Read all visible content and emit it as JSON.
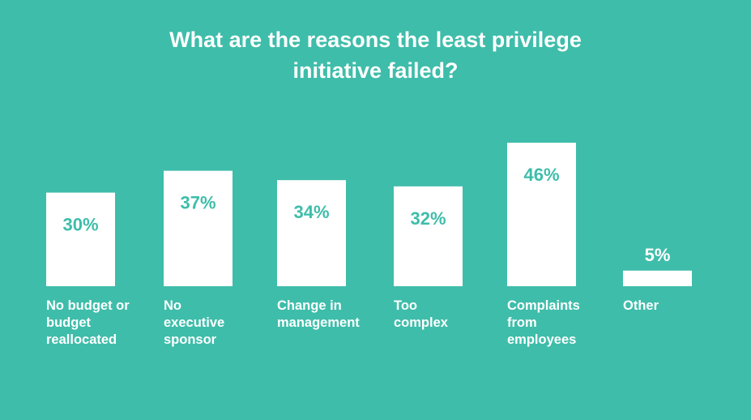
{
  "title_lines": [
    "What are the reasons the least privilege",
    "initiative failed?"
  ],
  "colors": {
    "background": "#3ebdaa",
    "bar": "#ffffff",
    "value_text": "#3ebdaa",
    "label_text": "#ffffff"
  },
  "chart_data": {
    "type": "bar",
    "title": "What are the reasons the least privilege initiative failed?",
    "categories": [
      "No budget or budget reallocated",
      "No executive sponsor",
      "Change in management",
      "Too complex",
      "Complaints from employees",
      "Other"
    ],
    "category_label_lines": [
      [
        "No budget or",
        "budget",
        "reallocated"
      ],
      [
        "No",
        "executive",
        "sponsor"
      ],
      [
        "Change in",
        "management"
      ],
      [
        "Too",
        "complex"
      ],
      [
        "Complaints",
        "from",
        "employees"
      ],
      [
        "Other"
      ]
    ],
    "values": [
      30,
      37,
      34,
      32,
      46,
      5
    ],
    "value_labels": [
      "30%",
      "37%",
      "34%",
      "32%",
      "46%",
      "5%"
    ],
    "unit": "%",
    "xlabel": "",
    "ylabel": "",
    "ylim": [
      0,
      46
    ],
    "grid": false,
    "legend": "none"
  }
}
